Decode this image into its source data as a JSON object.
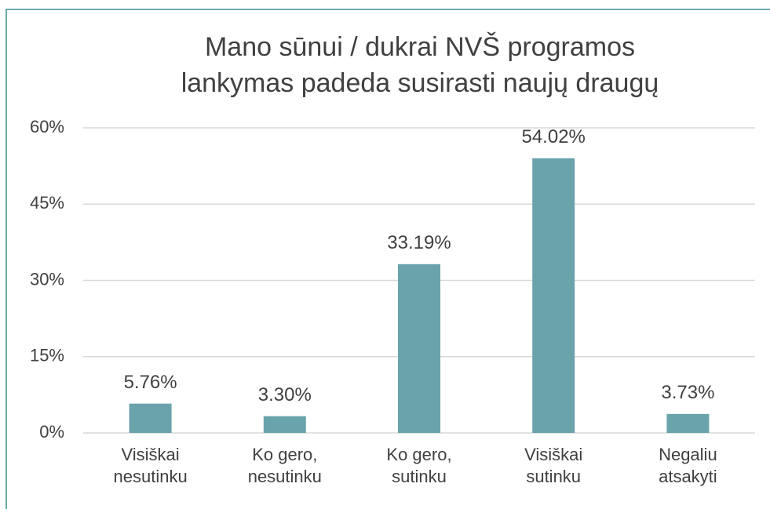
{
  "chart_data": {
    "type": "bar",
    "title": [
      "Mano sūnui / dukrai NVŠ programos",
      "lankymas padeda susirasti naujų draugų"
    ],
    "categories": [
      "Visiškai nesutinku",
      "Ko gero, nesutinku",
      "Ko gero, sutinku",
      "Visiškai sutinku",
      "Negaliu atsakyti"
    ],
    "values": [
      5.76,
      3.3,
      33.19,
      54.02,
      3.73
    ],
    "value_labels": [
      "5.76%",
      "3.30%",
      "33.19%",
      "54.02%",
      "3.73%"
    ],
    "color": "#6aa3ab",
    "ylim": [
      0,
      60
    ],
    "yticks": [
      {
        "value": 0,
        "label": "0%"
      },
      {
        "value": 15,
        "label": "15%"
      },
      {
        "value": 30,
        "label": "30%"
      },
      {
        "value": 45,
        "label": "45%"
      },
      {
        "value": 60,
        "label": "60%"
      }
    ],
    "grid": true
  }
}
